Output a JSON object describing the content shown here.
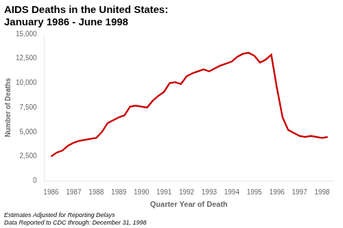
{
  "chart_data": {
    "type": "line",
    "title": [
      "AIDS Deaths in the United States:",
      "January 1986 - June 1998"
    ],
    "annotations": [
      "Estimates Adjusted for Reporting Delays",
      "Data Reported to CDC through: December 31, 1998"
    ],
    "xlabel": "Quarter Year of Death",
    "ylabel": "Number of Deaths",
    "x": [
      1986.0,
      1986.25,
      1986.5,
      1986.75,
      1987.0,
      1987.25,
      1987.5,
      1987.75,
      1988.0,
      1988.25,
      1988.5,
      1988.75,
      1989.0,
      1989.25,
      1989.5,
      1989.75,
      1990.0,
      1990.25,
      1990.5,
      1990.75,
      1991.0,
      1991.25,
      1991.5,
      1991.75,
      1992.0,
      1992.25,
      1992.5,
      1992.75,
      1993.0,
      1993.25,
      1993.5,
      1993.75,
      1994.0,
      1994.25,
      1994.5,
      1994.75,
      1995.0,
      1995.25,
      1995.5,
      1995.75,
      1996.0,
      1996.25,
      1996.5,
      1996.75,
      1997.0,
      1997.25,
      1997.5,
      1997.75,
      1998.0,
      1998.25
    ],
    "values": [
      2500,
      2900,
      3100,
      3600,
      3900,
      4100,
      4200,
      4300,
      4400,
      5000,
      5900,
      6200,
      6500,
      6700,
      7600,
      7700,
      7600,
      7500,
      8200,
      8700,
      9100,
      10000,
      10100,
      9900,
      10700,
      11000,
      11200,
      11400,
      11200,
      11500,
      11800,
      12000,
      12200,
      12700,
      13000,
      13100,
      12800,
      12100,
      12400,
      12900,
      9500,
      6500,
      5200,
      4900,
      4600,
      4500,
      4600,
      4500,
      4400,
      4500
    ],
    "color": "#cc0000",
    "xlim": [
      1985.7,
      1998.5
    ],
    "xticks": [
      1986,
      1987,
      1988,
      1989,
      1990,
      1991,
      1992,
      1993,
      1994,
      1995,
      1996,
      1997,
      1998
    ],
    "ylim": [
      0,
      15000
    ],
    "yticks": [
      0,
      {
        "value": 2500,
        "label": "2,500"
      },
      {
        "value": 5000,
        "label": "5,000"
      },
      {
        "value": 7500,
        "label": "7,500"
      },
      {
        "value": 10000,
        "label": "10,000"
      },
      {
        "value": 12500,
        "label": "12,500"
      },
      {
        "value": 15000,
        "label": "15,000"
      }
    ],
    "grid": false
  }
}
